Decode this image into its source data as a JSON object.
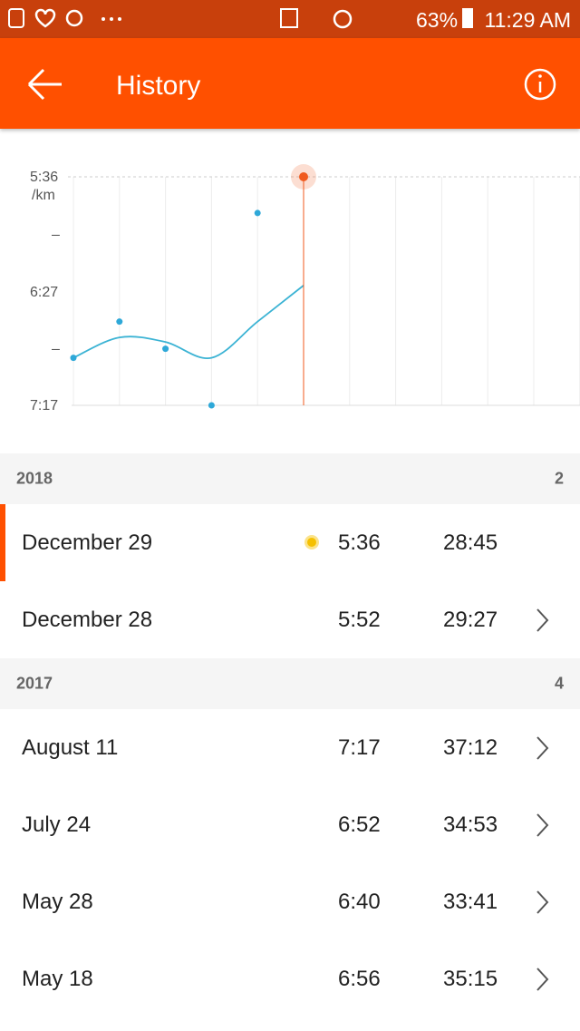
{
  "status_bar": {
    "battery": "63%",
    "time": "11:29 AM"
  },
  "app_bar": {
    "title": "History"
  },
  "chart_data": {
    "type": "line",
    "y_unit": "/km",
    "categories": [
      null,
      null,
      null,
      null,
      null,
      null
    ],
    "series": [
      {
        "color": "#2ea8d8",
        "values": [
          416,
          400,
          412,
          437,
          352,
          336
        ]
      },
      {
        "color": "#3bb3d4",
        "values": [
          416,
          407,
          409,
          416,
          400,
          384
        ]
      }
    ],
    "ylim": [
      437,
      336
    ],
    "yticks": [
      {
        "value": 336,
        "label": "5:36"
      },
      {
        "value": 361.5,
        "label": "–"
      },
      {
        "value": 387,
        "label": "6:27"
      },
      {
        "value": 412,
        "label": "–"
      },
      {
        "value": 437,
        "label": "7:17"
      }
    ],
    "grid": true,
    "selected_index": 5,
    "highlight_color": "#f05a1e"
  },
  "sections": [
    {
      "year": "2018",
      "count": 2,
      "rows": [
        {
          "date": "December 29",
          "pace": "5:36",
          "duration": "28:45"
        },
        {
          "date": "December 28",
          "pace": "5:52",
          "duration": "29:27"
        }
      ]
    },
    {
      "year": "2017",
      "count": 4,
      "rows": [
        {
          "date": "August 11",
          "pace": "7:17",
          "duration": "37:12"
        },
        {
          "date": "July 24",
          "pace": "6:52",
          "duration": "34:53"
        },
        {
          "date": "May 28",
          "pace": "6:40",
          "duration": "33:41"
        },
        {
          "date": "May 18",
          "pace": "6:56",
          "duration": "35:15"
        }
      ]
    }
  ]
}
